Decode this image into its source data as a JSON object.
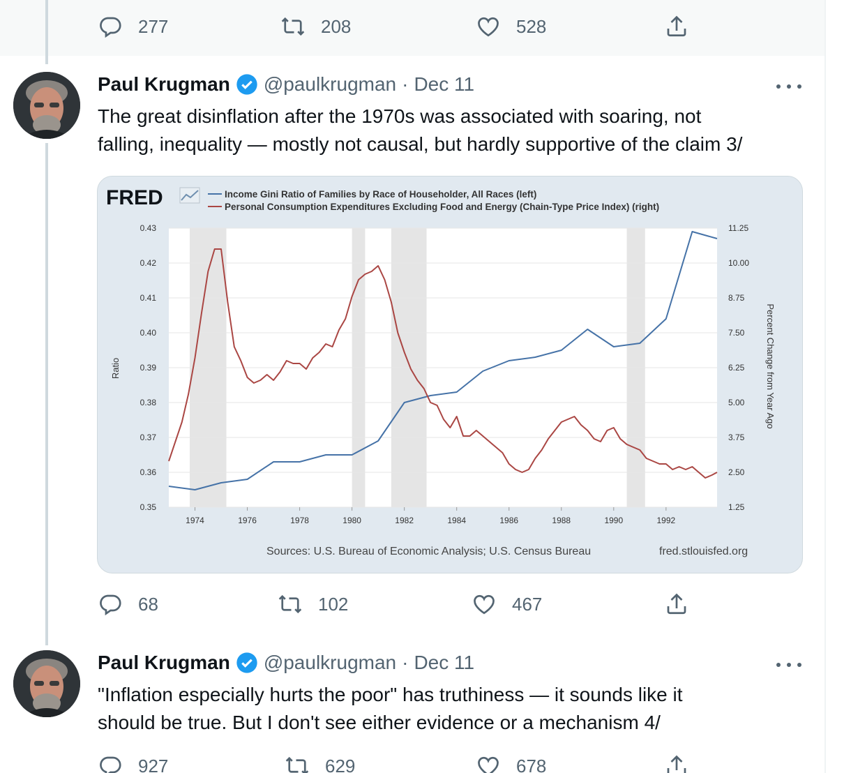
{
  "prev_tweet": {
    "actions": {
      "replies": "277",
      "retweets": "208",
      "likes": "528"
    }
  },
  "tweets": [
    {
      "name": "Paul Krugman",
      "handle": "@paulkrugman",
      "sep": "·",
      "date": "Dec 11",
      "text_lines": [
        "The great disinflation after the 1970s was associated with soaring, not",
        "falling, inequality — mostly not causal, but hardly supportive of the claim 3/"
      ],
      "actions": {
        "replies": "68",
        "retweets": "102",
        "likes": "467"
      }
    },
    {
      "name": "Paul Krugman",
      "handle": "@paulkrugman",
      "sep": "·",
      "date": "Dec 11",
      "text_lines": [
        "\"Inflation especially hurts the poor\" has truthiness — it sounds like it",
        "should be true. But I don't see either evidence or a mechanism 4/"
      ],
      "actions": {
        "replies": "927",
        "retweets": "629",
        "likes": "678"
      }
    }
  ],
  "icons": [
    "reply-icon",
    "retweet-icon",
    "like-icon",
    "share-icon",
    "verified-badge-icon",
    "more-icon"
  ],
  "colors": {
    "gini": "#4572a7",
    "pce": "#aa4643",
    "recession": "#e5e5e5",
    "plot_bg": "#ffffff",
    "card_bg": "#e1e9f0",
    "muted": "#536471",
    "verified": "#1d9bf0"
  },
  "chart_data": {
    "type": "line",
    "brand": "FRED",
    "legend": [
      "Income Gini Ratio of Families by Race of Householder, All Races (left)",
      "Personal Consumption Expenditures Excluding Food and Energy (Chain-Type Price Index) (right)"
    ],
    "ylabel_left": "Ratio",
    "ylabel_right": "Percent Change from Year Ago",
    "ylim_left": [
      0.35,
      0.43
    ],
    "ylim_right": [
      1.25,
      11.25
    ],
    "xlim": [
      1973.0,
      1993.95
    ],
    "x_ticks": [
      "1974",
      "1976",
      "1978",
      "1980",
      "1982",
      "1984",
      "1986",
      "1988",
      "1990",
      "1992"
    ],
    "y_ticks_left": [
      "0.35",
      "0.36",
      "0.37",
      "0.38",
      "0.39",
      "0.40",
      "0.41",
      "0.42",
      "0.43"
    ],
    "y_ticks_right": [
      "1.25",
      "2.50",
      "3.75",
      "5.00",
      "6.25",
      "7.50",
      "8.75",
      "10.00",
      "11.25"
    ],
    "recessions": [
      [
        1973.8,
        1975.2
      ],
      [
        1980.0,
        1980.5
      ],
      [
        1981.5,
        1982.85
      ],
      [
        1990.5,
        1991.2
      ]
    ],
    "series": [
      {
        "name": "Income Gini Ratio of Families by Race of Householder, All Races (left)",
        "axis": "left",
        "x": [
          1973,
          1974,
          1975,
          1976,
          1977,
          1978,
          1979,
          1980,
          1981,
          1982,
          1983,
          1984,
          1985,
          1986,
          1987,
          1988,
          1989,
          1990,
          1991,
          1992,
          1993,
          1993.95
        ],
        "y": [
          0.356,
          0.355,
          0.357,
          0.358,
          0.363,
          0.363,
          0.365,
          0.365,
          0.369,
          0.38,
          0.382,
          0.383,
          0.389,
          0.392,
          0.393,
          0.395,
          0.401,
          0.396,
          0.397,
          0.404,
          0.429,
          0.427
        ]
      },
      {
        "name": "Personal Consumption Expenditures Excluding Food and Energy (Chain-Type Price Index) (right)",
        "axis": "right",
        "x": [
          1973.0,
          1973.25,
          1973.5,
          1973.75,
          1974.0,
          1974.25,
          1974.5,
          1974.75,
          1975.0,
          1975.25,
          1975.5,
          1975.75,
          1976.0,
          1976.25,
          1976.5,
          1976.75,
          1977.0,
          1977.25,
          1977.5,
          1977.75,
          1978.0,
          1978.25,
          1978.5,
          1978.75,
          1979.0,
          1979.25,
          1979.5,
          1979.75,
          1980.0,
          1980.25,
          1980.5,
          1980.75,
          1981.0,
          1981.25,
          1981.5,
          1981.75,
          1982.0,
          1982.25,
          1982.5,
          1982.75,
          1983.0,
          1983.25,
          1983.5,
          1983.75,
          1984.0,
          1984.25,
          1984.5,
          1984.75,
          1985.0,
          1985.25,
          1985.5,
          1985.75,
          1986.0,
          1986.25,
          1986.5,
          1986.75,
          1987.0,
          1987.25,
          1987.5,
          1987.75,
          1988.0,
          1988.25,
          1988.5,
          1988.75,
          1989.0,
          1989.25,
          1989.5,
          1989.75,
          1990.0,
          1990.25,
          1990.5,
          1990.75,
          1991.0,
          1991.25,
          1991.5,
          1991.75,
          1992.0,
          1992.25,
          1992.5,
          1992.75,
          1993.0,
          1993.25,
          1993.5,
          1993.75,
          1993.95
        ],
        "y": [
          2.9,
          3.6,
          4.3,
          5.3,
          6.6,
          8.2,
          9.7,
          10.5,
          10.5,
          8.6,
          7.0,
          6.5,
          5.9,
          5.7,
          5.8,
          6.0,
          5.8,
          6.1,
          6.5,
          6.4,
          6.4,
          6.2,
          6.6,
          6.8,
          7.1,
          7.0,
          7.6,
          8.0,
          8.8,
          9.4,
          9.6,
          9.7,
          9.9,
          9.4,
          8.6,
          7.5,
          6.8,
          6.2,
          5.8,
          5.5,
          5.0,
          4.9,
          4.4,
          4.1,
          4.5,
          3.8,
          3.8,
          4.0,
          3.8,
          3.6,
          3.4,
          3.2,
          2.8,
          2.6,
          2.5,
          2.6,
          3.0,
          3.3,
          3.7,
          4.0,
          4.3,
          4.4,
          4.5,
          4.2,
          4.0,
          3.7,
          3.6,
          4.0,
          4.1,
          3.7,
          3.5,
          3.4,
          3.3,
          3.0,
          2.9,
          2.8,
          2.8,
          2.6,
          2.7,
          2.6,
          2.7,
          2.5,
          2.3,
          2.4,
          2.5
        ]
      }
    ],
    "sources": "Sources: U.S. Bureau of Economic Analysis; U.S. Census Bureau",
    "site": "fred.stlouisfed.org"
  }
}
